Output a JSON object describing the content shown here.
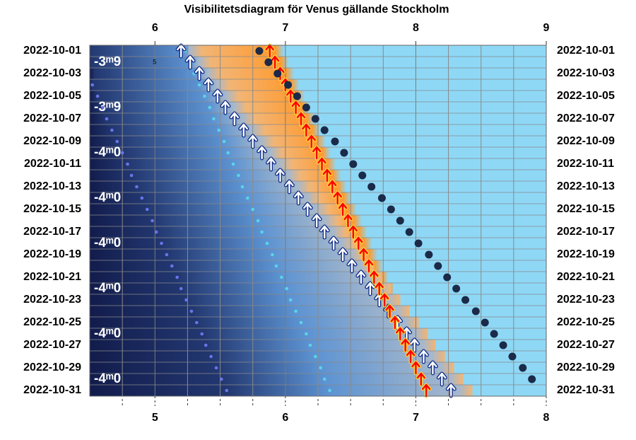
{
  "chart_data": {
    "type": "visibility",
    "title": "Visibilitetsdiagram för Venus gällande Stockholm",
    "categories": [
      "2022-10-01",
      null,
      "2022-10-03",
      null,
      "2022-10-05",
      null,
      "2022-10-07",
      null,
      "2022-10-09",
      null,
      "2022-10-11",
      null,
      "2022-10-13",
      null,
      "2022-10-15",
      null,
      "2022-10-17",
      null,
      "2022-10-19",
      null,
      "2022-10-21",
      null,
      "2022-10-23",
      null,
      "2022-10-25",
      null,
      "2022-10-27",
      null,
      "2022-10-29",
      null,
      "2022-10-31"
    ],
    "xlim": [
      5.5,
      9
    ],
    "xticks": [
      6,
      7,
      8,
      9
    ],
    "x2lim": [
      4.5,
      8
    ],
    "x2ticks": [
      5,
      6,
      7,
      8
    ],
    "xminor": [
      5.75,
      6.25,
      6.5,
      6.75,
      7.25,
      7.5,
      7.75,
      8.25,
      8.5,
      8.75
    ],
    "grid": true,
    "series": [
      {
        "marker": "dot-purple",
        "color": "#6b74ea",
        "values": [
          null,
          null,
          null,
          5.52,
          5.56,
          5.6,
          5.63,
          5.67,
          5.71,
          5.75,
          5.79,
          5.82,
          5.86,
          5.9,
          5.94,
          5.98,
          6.01,
          6.05,
          6.09,
          6.13,
          6.17,
          6.2,
          6.24,
          6.28,
          6.32,
          6.36,
          6.39,
          6.43,
          6.47,
          6.51,
          6.55
        ]
      },
      {
        "marker": "dot-cyan",
        "color": "#5ad4e6",
        "values": [
          6.23,
          6.27,
          6.3,
          6.34,
          6.38,
          6.42,
          6.45,
          6.49,
          6.53,
          6.56,
          6.6,
          6.64,
          6.67,
          6.71,
          6.75,
          6.79,
          6.82,
          6.86,
          6.9,
          6.93,
          6.97,
          7.01,
          7.04,
          7.08,
          7.12,
          7.16,
          7.19,
          7.23,
          7.27,
          7.3,
          7.34
        ]
      },
      {
        "marker": "arrow-white",
        "color": "#ffffff",
        "values": [
          6.2,
          6.27,
          6.34,
          6.41,
          6.48,
          6.54,
          6.61,
          6.68,
          6.75,
          6.82,
          6.89,
          6.96,
          7.03,
          7.1,
          7.17,
          7.24,
          7.3,
          7.37,
          7.44,
          7.51,
          7.58,
          7.65,
          7.72,
          7.79,
          7.86,
          7.93,
          7.99,
          8.06,
          8.13,
          8.2,
          8.27
        ]
      },
      {
        "marker": "arrow-red",
        "color": "#ff0000",
        "values": [
          6.88,
          6.92,
          6.96,
          7.0,
          7.04,
          7.08,
          7.12,
          7.16,
          7.2,
          7.24,
          7.28,
          7.32,
          7.36,
          7.4,
          7.44,
          7.48,
          7.52,
          7.56,
          7.6,
          7.64,
          7.68,
          7.72,
          7.76,
          7.8,
          7.84,
          7.88,
          7.92,
          7.96,
          8.0,
          8.04,
          8.08
        ]
      },
      {
        "marker": "dot-dark",
        "color": "#1b2a48",
        "values": [
          6.8,
          6.87,
          6.94,
          7.02,
          7.09,
          7.16,
          7.23,
          7.3,
          7.38,
          7.45,
          7.52,
          7.59,
          7.66,
          7.74,
          7.81,
          7.88,
          7.95,
          8.02,
          8.1,
          8.17,
          8.24,
          8.31,
          8.38,
          8.46,
          8.53,
          8.6,
          8.67,
          8.74,
          8.82,
          8.89,
          null
        ]
      }
    ],
    "magnitude": {
      "values": [
        null,
        -3.9,
        null,
        null,
        null,
        -3.9,
        null,
        null,
        null,
        -4.0,
        null,
        null,
        null,
        -4.0,
        null,
        null,
        null,
        -4.0,
        null,
        null,
        null,
        -4.0,
        null,
        null,
        null,
        -4.0,
        null,
        null,
        null,
        -4.0,
        null
      ],
      "value_labels": [
        null,
        "-3ᵐ9",
        null,
        null,
        null,
        "-3ᵐ9",
        null,
        null,
        null,
        "-4ᵐ0",
        null,
        null,
        null,
        "-4ᵐ0",
        null,
        null,
        null,
        "-4ᵐ0",
        null,
        null,
        null,
        "-4ᵐ0",
        null,
        null,
        null,
        "-4ᵐ0",
        null,
        null,
        null,
        "-4ᵐ0",
        null
      ]
    },
    "annotations": [
      {
        "text": "5",
        "x": 6.0,
        "row": 1
      }
    ]
  }
}
